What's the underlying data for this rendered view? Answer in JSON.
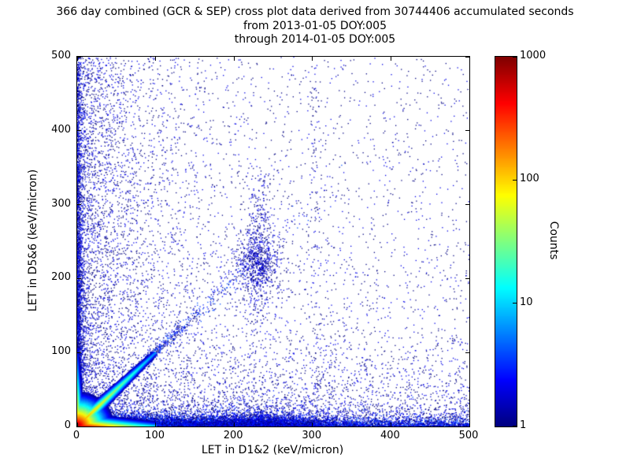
{
  "chart_data": {
    "type": "heatmap",
    "title": "366 day combined (GCR & SEP) cross plot data derived from 30744406 accumulated seconds",
    "subtitle": [
      "from 2013-01-05 DOY:005",
      "through 2014-01-05 DOY:005"
    ],
    "xlabel": "LET in D1&2 (keV/micron)",
    "ylabel": "LET in D5&6 (keV/micron)",
    "xlim": [
      0,
      500
    ],
    "ylim": [
      0,
      500
    ],
    "xticks": [
      "0",
      "100",
      "200",
      "300",
      "400",
      "500"
    ],
    "yticks": [
      "0",
      "100",
      "200",
      "300",
      "400",
      "500"
    ],
    "grid": false,
    "legend": "none",
    "accumulated_seconds": "30744406",
    "colorbar": {
      "label": "Counts",
      "scale": "log",
      "min": 1,
      "max": 1000,
      "ticks": [
        "1",
        "10",
        "100",
        "1000"
      ],
      "colormap": "jet"
    },
    "description": "2D density cross plot of LET in detectors D5&6 vs D1&2. Intense hot spot (counts ~1000, red/orange) at the origin, bright band along the x-axis out to ~100 keV/micron, cyan diagonal y=x streak to ~100, dense blue band along the bottom (y<15) out to ~350, dense blue column along the left (x<10), a moderate blue cluster near (228,222), and sparse single-count blue points scattered over the rest of the plane.",
    "render": {
      "seed": 20130105,
      "features": [
        {
          "kind": "scatter",
          "n": 12000,
          "x": {
            "dist": "exp",
            "scale": 120,
            "uniformMix": 0.25
          },
          "y": {
            "dist": "exp",
            "scale": 5
          },
          "cmax": 4
        },
        {
          "kind": "scatter",
          "n": 2500,
          "x": {
            "dist": "gauss",
            "mean": 235,
            "sigma": 40
          },
          "y": {
            "dist": "exp",
            "scale": 7
          },
          "cmax": 3
        },
        {
          "kind": "scatter",
          "n": 3000,
          "x": {
            "dist": "exp",
            "scale": 3
          },
          "y": {
            "dist": "exp",
            "scale": 150,
            "uniformMix": 0.3
          },
          "cmax": 3
        },
        {
          "kind": "scatter",
          "n": 2200,
          "diag": true,
          "t": {
            "scale": 55
          },
          "spread": 0.035,
          "cmax": 4
        },
        {
          "kind": "scatter",
          "n": 650,
          "x": {
            "dist": "gauss",
            "mean": 228,
            "sigma": 14
          },
          "y": {
            "dist": "gauss",
            "mean": 222,
            "sigma": 22
          },
          "cmax": 2
        },
        {
          "kind": "scatter",
          "n": 350,
          "x": {
            "dist": "gauss",
            "mean": 232,
            "sigma": 9
          },
          "y": {
            "dist": "uniform",
            "min": 140,
            "max": 345
          },
          "cmax": 2
        },
        {
          "kind": "scatter",
          "n": 2600,
          "x": {
            "dist": "exp",
            "scale": 55
          },
          "y": {
            "dist": "uniform",
            "min": 0,
            "max": 500
          },
          "cmax": 2
        },
        {
          "kind": "scatter",
          "n": 2200,
          "x": {
            "dist": "uniform",
            "min": 0,
            "max": 500
          },
          "y": {
            "dist": "exp",
            "scale": 45
          },
          "cmax": 2
        },
        {
          "kind": "scatter",
          "n": 3800,
          "x": {
            "dist": "pow",
            "p": 1.8
          },
          "y": {
            "dist": "pow",
            "p": 1.8
          },
          "cmax": 2
        },
        {
          "kind": "scatter",
          "n": 600,
          "x": {
            "dist": "uniform",
            "min": 0,
            "max": 500
          },
          "y": {
            "dist": "uniform",
            "min": 0,
            "max": 500
          },
          "cmax": 1
        },
        {
          "kind": "scatter",
          "n": 130,
          "x": {
            "dist": "gauss",
            "mean": 303,
            "sigma": 5
          },
          "y": {
            "dist": "uniform",
            "min": 0,
            "max": 490
          },
          "cmax": 2
        },
        {
          "kind": "grid_blob",
          "extent": 100,
          "terms": [
            {
              "type": "radial",
              "peak": 1000,
              "scale": 7
            },
            {
              "type": "axis_h",
              "peak": 700,
              "xdecay": 25,
              "ydecay": 3
            },
            {
              "type": "axis_v",
              "peak": 240,
              "ydecay": 25,
              "xdecay": 2
            },
            {
              "type": "diag",
              "peak": 200,
              "wdecay": 3,
              "tdecay": 30
            }
          ]
        }
      ]
    }
  }
}
